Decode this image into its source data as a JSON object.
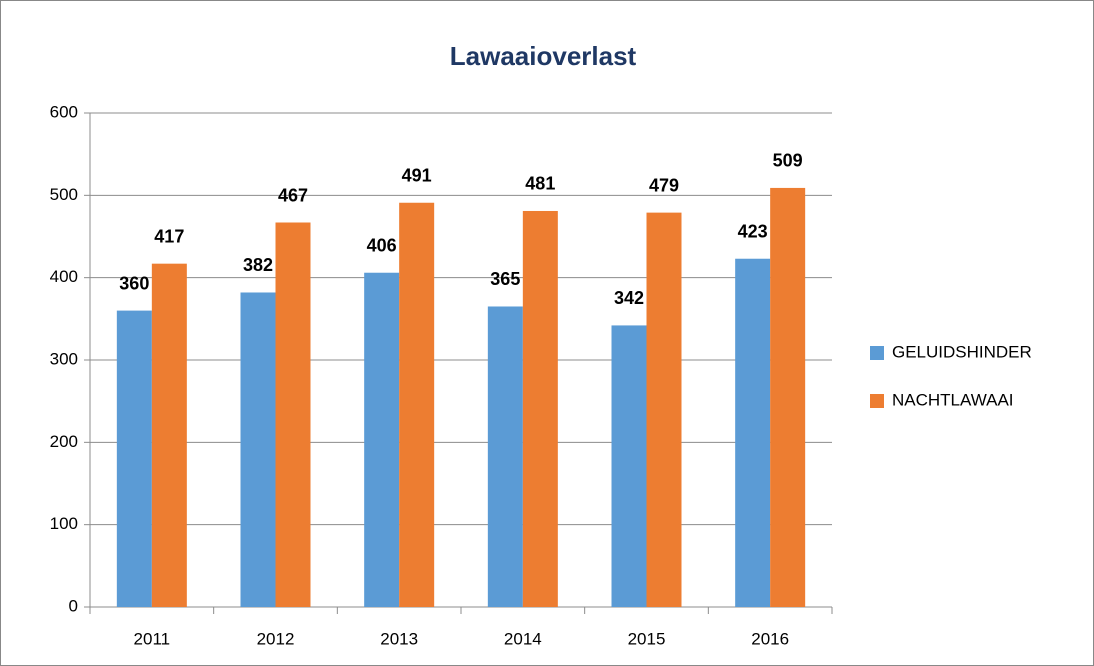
{
  "chart_data": {
    "type": "bar",
    "title": "Lawaaioverlast",
    "categories": [
      "2011",
      "2012",
      "2013",
      "2014",
      "2015",
      "2016"
    ],
    "series": [
      {
        "name": "GELUIDSHINDER",
        "color": "#5b9bd5",
        "values": [
          360,
          382,
          406,
          365,
          342,
          423
        ]
      },
      {
        "name": "NACHTLAWAAI",
        "color": "#ed7d31",
        "values": [
          417,
          467,
          491,
          481,
          479,
          509
        ]
      }
    ],
    "ylim": [
      0,
      600
    ],
    "yticks": [
      0,
      100,
      200,
      300,
      400,
      500,
      600
    ],
    "grid": true,
    "legend": "right"
  }
}
